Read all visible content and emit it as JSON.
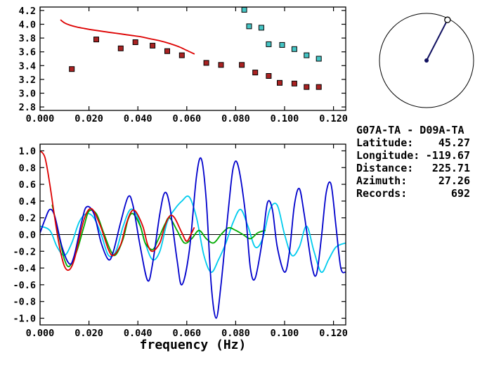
{
  "station_pair": "G07A-TA - D09A-TA",
  "info": [
    {
      "label": "Latitude:",
      "value": "45.27"
    },
    {
      "label": "Longitude:",
      "value": "-119.67"
    },
    {
      "label": "Distance:",
      "value": "225.71"
    },
    {
      "label": "Azimuth:",
      "value": "27.26"
    },
    {
      "label": "Records:",
      "value": "692"
    }
  ],
  "azimuth_dial": {
    "azimuth_deg": 27.26,
    "needle_color": "#101060"
  },
  "chart_data": [
    {
      "type": "line",
      "title": "",
      "xlabel": "",
      "ylabel": "",
      "xlim": [
        0,
        0.125
      ],
      "ylim": [
        2.75,
        4.25
      ],
      "grid": false,
      "x_ticks": {
        "values": [
          0,
          0.02,
          0.04,
          0.06,
          0.08,
          0.1,
          0.12
        ],
        "labels": [
          "0.000",
          "0.020",
          "0.040",
          "0.060",
          "0.080",
          "0.100",
          "0.120"
        ]
      },
      "y_ticks": {
        "values": [
          4.2,
          4.0,
          3.8,
          3.6,
          3.4,
          3.2,
          3.0,
          2.8
        ],
        "labels": [
          "4.2",
          "4.0",
          "3.8",
          "3.6",
          "3.4",
          "3.2",
          "3.0",
          "2.8"
        ]
      },
      "series": [
        {
          "name": "reference-dispersion-curve",
          "color": "#dd0000",
          "points": [
            [
              0.0085,
              4.06
            ],
            [
              0.01,
              4.02
            ],
            [
              0.012,
              3.99
            ],
            [
              0.015,
              3.96
            ],
            [
              0.018,
              3.94
            ],
            [
              0.021,
              3.92
            ],
            [
              0.025,
              3.9
            ],
            [
              0.029,
              3.88
            ],
            [
              0.033,
              3.86
            ],
            [
              0.037,
              3.84
            ],
            [
              0.041,
              3.82
            ],
            [
              0.045,
              3.79
            ],
            [
              0.049,
              3.76
            ],
            [
              0.053,
              3.72
            ],
            [
              0.057,
              3.67
            ],
            [
              0.06,
              3.62
            ],
            [
              0.063,
              3.57
            ]
          ]
        }
      ],
      "scatter": [
        {
          "name": "group-velocity-picks",
          "color": "#aa2222",
          "points": [
            [
              0.013,
              3.35
            ],
            [
              0.023,
              3.78
            ],
            [
              0.033,
              3.65
            ],
            [
              0.039,
              3.74
            ],
            [
              0.046,
              3.69
            ],
            [
              0.052,
              3.61
            ],
            [
              0.058,
              3.55
            ],
            [
              0.068,
              3.44
            ],
            [
              0.074,
              3.41
            ],
            [
              0.0825,
              3.41
            ],
            [
              0.088,
              3.3
            ],
            [
              0.0935,
              3.25
            ],
            [
              0.098,
              3.15
            ],
            [
              0.104,
              3.14
            ],
            [
              0.109,
              3.09
            ],
            [
              0.114,
              3.09
            ]
          ]
        },
        {
          "name": "phase-velocity-picks",
          "color": "#45c5c5",
          "points": [
            [
              0.0835,
              4.21
            ],
            [
              0.0855,
              3.97
            ],
            [
              0.0905,
              3.95
            ],
            [
              0.0935,
              3.71
            ],
            [
              0.099,
              3.7
            ],
            [
              0.104,
              3.64
            ],
            [
              0.109,
              3.55
            ],
            [
              0.114,
              3.5
            ]
          ]
        }
      ]
    },
    {
      "type": "line",
      "title": "",
      "xlabel": "frequency (Hz)",
      "ylabel": "",
      "xlim": [
        0,
        0.125
      ],
      "ylim": [
        -1.08,
        1.08
      ],
      "grid": false,
      "zero_line": true,
      "x_ticks": {
        "values": [
          0,
          0.02,
          0.04,
          0.06,
          0.08,
          0.1,
          0.12
        ],
        "labels": [
          "0.000",
          "0.020",
          "0.040",
          "0.060",
          "0.080",
          "0.100",
          "0.120"
        ]
      },
      "y_ticks": {
        "values": [
          1.0,
          0.8,
          0.6,
          0.4,
          0.2,
          0.0,
          -0.2,
          -0.4,
          -0.6,
          -0.8,
          -1.0
        ],
        "labels": [
          "1.0",
          "0.8",
          "0.6",
          "0.4",
          "0.2",
          "0.0",
          "-0.2",
          "-0.4",
          "-0.6",
          "-0.8",
          "-1.0"
        ]
      },
      "series": [
        {
          "name": "coherence-cyan",
          "color": "#00ccee",
          "points": [
            [
              0.0,
              0.1
            ],
            [
              0.004,
              0.05
            ],
            [
              0.007,
              -0.15
            ],
            [
              0.01,
              -0.25
            ],
            [
              0.013,
              -0.1
            ],
            [
              0.016,
              0.15
            ],
            [
              0.019,
              0.25
            ],
            [
              0.022,
              0.2
            ],
            [
              0.025,
              0.0
            ],
            [
              0.028,
              -0.25
            ],
            [
              0.031,
              -0.2
            ],
            [
              0.034,
              0.1
            ],
            [
              0.037,
              0.3
            ],
            [
              0.04,
              0.2
            ],
            [
              0.043,
              -0.1
            ],
            [
              0.046,
              -0.3
            ],
            [
              0.049,
              -0.2
            ],
            [
              0.052,
              0.15
            ],
            [
              0.055,
              0.3
            ],
            [
              0.058,
              0.4
            ],
            [
              0.061,
              0.45
            ],
            [
              0.064,
              0.2
            ],
            [
              0.067,
              -0.25
            ],
            [
              0.07,
              -0.45
            ],
            [
              0.073,
              -0.3
            ],
            [
              0.076,
              -0.1
            ],
            [
              0.079,
              0.15
            ],
            [
              0.082,
              0.3
            ],
            [
              0.085,
              0.1
            ],
            [
              0.088,
              -0.15
            ],
            [
              0.091,
              -0.05
            ],
            [
              0.094,
              0.3
            ],
            [
              0.097,
              0.35
            ],
            [
              0.1,
              0.0
            ],
            [
              0.103,
              -0.25
            ],
            [
              0.106,
              -0.15
            ],
            [
              0.109,
              0.1
            ],
            [
              0.112,
              -0.2
            ],
            [
              0.115,
              -0.45
            ],
            [
              0.118,
              -0.3
            ],
            [
              0.121,
              -0.15
            ],
            [
              0.125,
              -0.1
            ]
          ]
        },
        {
          "name": "fit-green",
          "color": "#00aa00",
          "points": [
            [
              0.005,
              0.35
            ],
            [
              0.008,
              -0.05
            ],
            [
              0.01,
              -0.3
            ],
            [
              0.012,
              -0.38
            ],
            [
              0.015,
              -0.2
            ],
            [
              0.018,
              0.1
            ],
            [
              0.02,
              0.28
            ],
            [
              0.023,
              0.25
            ],
            [
              0.026,
              0.02
            ],
            [
              0.029,
              -0.2
            ],
            [
              0.031,
              -0.24
            ],
            [
              0.034,
              -0.05
            ],
            [
              0.036,
              0.18
            ],
            [
              0.038,
              0.25
            ],
            [
              0.041,
              0.1
            ],
            [
              0.043,
              -0.1
            ],
            [
              0.046,
              -0.18
            ],
            [
              0.048,
              -0.08
            ],
            [
              0.051,
              0.12
            ],
            [
              0.053,
              0.2
            ],
            [
              0.056,
              0.05
            ],
            [
              0.059,
              -0.1
            ],
            [
              0.062,
              -0.05
            ],
            [
              0.065,
              0.05
            ],
            [
              0.068,
              -0.05
            ],
            [
              0.071,
              -0.1
            ],
            [
              0.074,
              0.0
            ],
            [
              0.077,
              0.08
            ],
            [
              0.08,
              0.05
            ],
            [
              0.083,
              0.0
            ],
            [
              0.086,
              -0.05
            ],
            [
              0.089,
              0.02
            ],
            [
              0.092,
              0.05
            ]
          ]
        },
        {
          "name": "cross-correlation-blue",
          "color": "#0000cc",
          "points": [
            [
              0.0,
              0.02
            ],
            [
              0.002,
              0.18
            ],
            [
              0.004,
              0.3
            ],
            [
              0.006,
              0.22
            ],
            [
              0.009,
              -0.15
            ],
            [
              0.012,
              -0.35
            ],
            [
              0.014,
              -0.25
            ],
            [
              0.017,
              0.15
            ],
            [
              0.019,
              0.33
            ],
            [
              0.022,
              0.25
            ],
            [
              0.025,
              -0.1
            ],
            [
              0.028,
              -0.3
            ],
            [
              0.03,
              -0.2
            ],
            [
              0.033,
              0.15
            ],
            [
              0.036,
              0.45
            ],
            [
              0.038,
              0.35
            ],
            [
              0.041,
              -0.15
            ],
            [
              0.044,
              -0.55
            ],
            [
              0.046,
              -0.35
            ],
            [
              0.049,
              0.25
            ],
            [
              0.051,
              0.5
            ],
            [
              0.053,
              0.35
            ],
            [
              0.056,
              -0.3
            ],
            [
              0.058,
              -0.6
            ],
            [
              0.061,
              -0.2
            ],
            [
              0.064,
              0.7
            ],
            [
              0.066,
              0.9
            ],
            [
              0.068,
              0.4
            ],
            [
              0.07,
              -0.6
            ],
            [
              0.072,
              -1.0
            ],
            [
              0.074,
              -0.6
            ],
            [
              0.077,
              0.3
            ],
            [
              0.079,
              0.8
            ],
            [
              0.081,
              0.82
            ],
            [
              0.084,
              0.25
            ],
            [
              0.086,
              -0.4
            ],
            [
              0.088,
              -0.52
            ],
            [
              0.091,
              -0.05
            ],
            [
              0.093,
              0.38
            ],
            [
              0.095,
              0.3
            ],
            [
              0.097,
              -0.15
            ],
            [
              0.1,
              -0.45
            ],
            [
              0.102,
              -0.2
            ],
            [
              0.104,
              0.35
            ],
            [
              0.106,
              0.55
            ],
            [
              0.108,
              0.25
            ],
            [
              0.111,
              -0.35
            ],
            [
              0.113,
              -0.48
            ],
            [
              0.115,
              -0.05
            ],
            [
              0.117,
              0.5
            ],
            [
              0.119,
              0.6
            ],
            [
              0.121,
              0.1
            ],
            [
              0.123,
              -0.4
            ],
            [
              0.125,
              -0.45
            ]
          ]
        },
        {
          "name": "filtered-red",
          "color": "#dd0000",
          "points": [
            [
              0.0,
              1.0
            ],
            [
              0.002,
              0.92
            ],
            [
              0.004,
              0.6
            ],
            [
              0.006,
              0.2
            ],
            [
              0.008,
              -0.15
            ],
            [
              0.01,
              -0.38
            ],
            [
              0.012,
              -0.42
            ],
            [
              0.014,
              -0.3
            ],
            [
              0.016,
              -0.05
            ],
            [
              0.018,
              0.18
            ],
            [
              0.02,
              0.3
            ],
            [
              0.022,
              0.28
            ],
            [
              0.025,
              0.08
            ],
            [
              0.028,
              -0.18
            ],
            [
              0.03,
              -0.25
            ],
            [
              0.033,
              -0.12
            ],
            [
              0.035,
              0.1
            ],
            [
              0.037,
              0.26
            ],
            [
              0.039,
              0.28
            ],
            [
              0.042,
              0.1
            ],
            [
              0.044,
              -0.12
            ],
            [
              0.046,
              -0.2
            ],
            [
              0.049,
              -0.1
            ],
            [
              0.051,
              0.1
            ],
            [
              0.053,
              0.22
            ],
            [
              0.055,
              0.2
            ],
            [
              0.058,
              0.02
            ],
            [
              0.06,
              -0.08
            ],
            [
              0.062,
              0.02
            ],
            [
              0.063,
              0.08
            ]
          ]
        }
      ]
    }
  ]
}
